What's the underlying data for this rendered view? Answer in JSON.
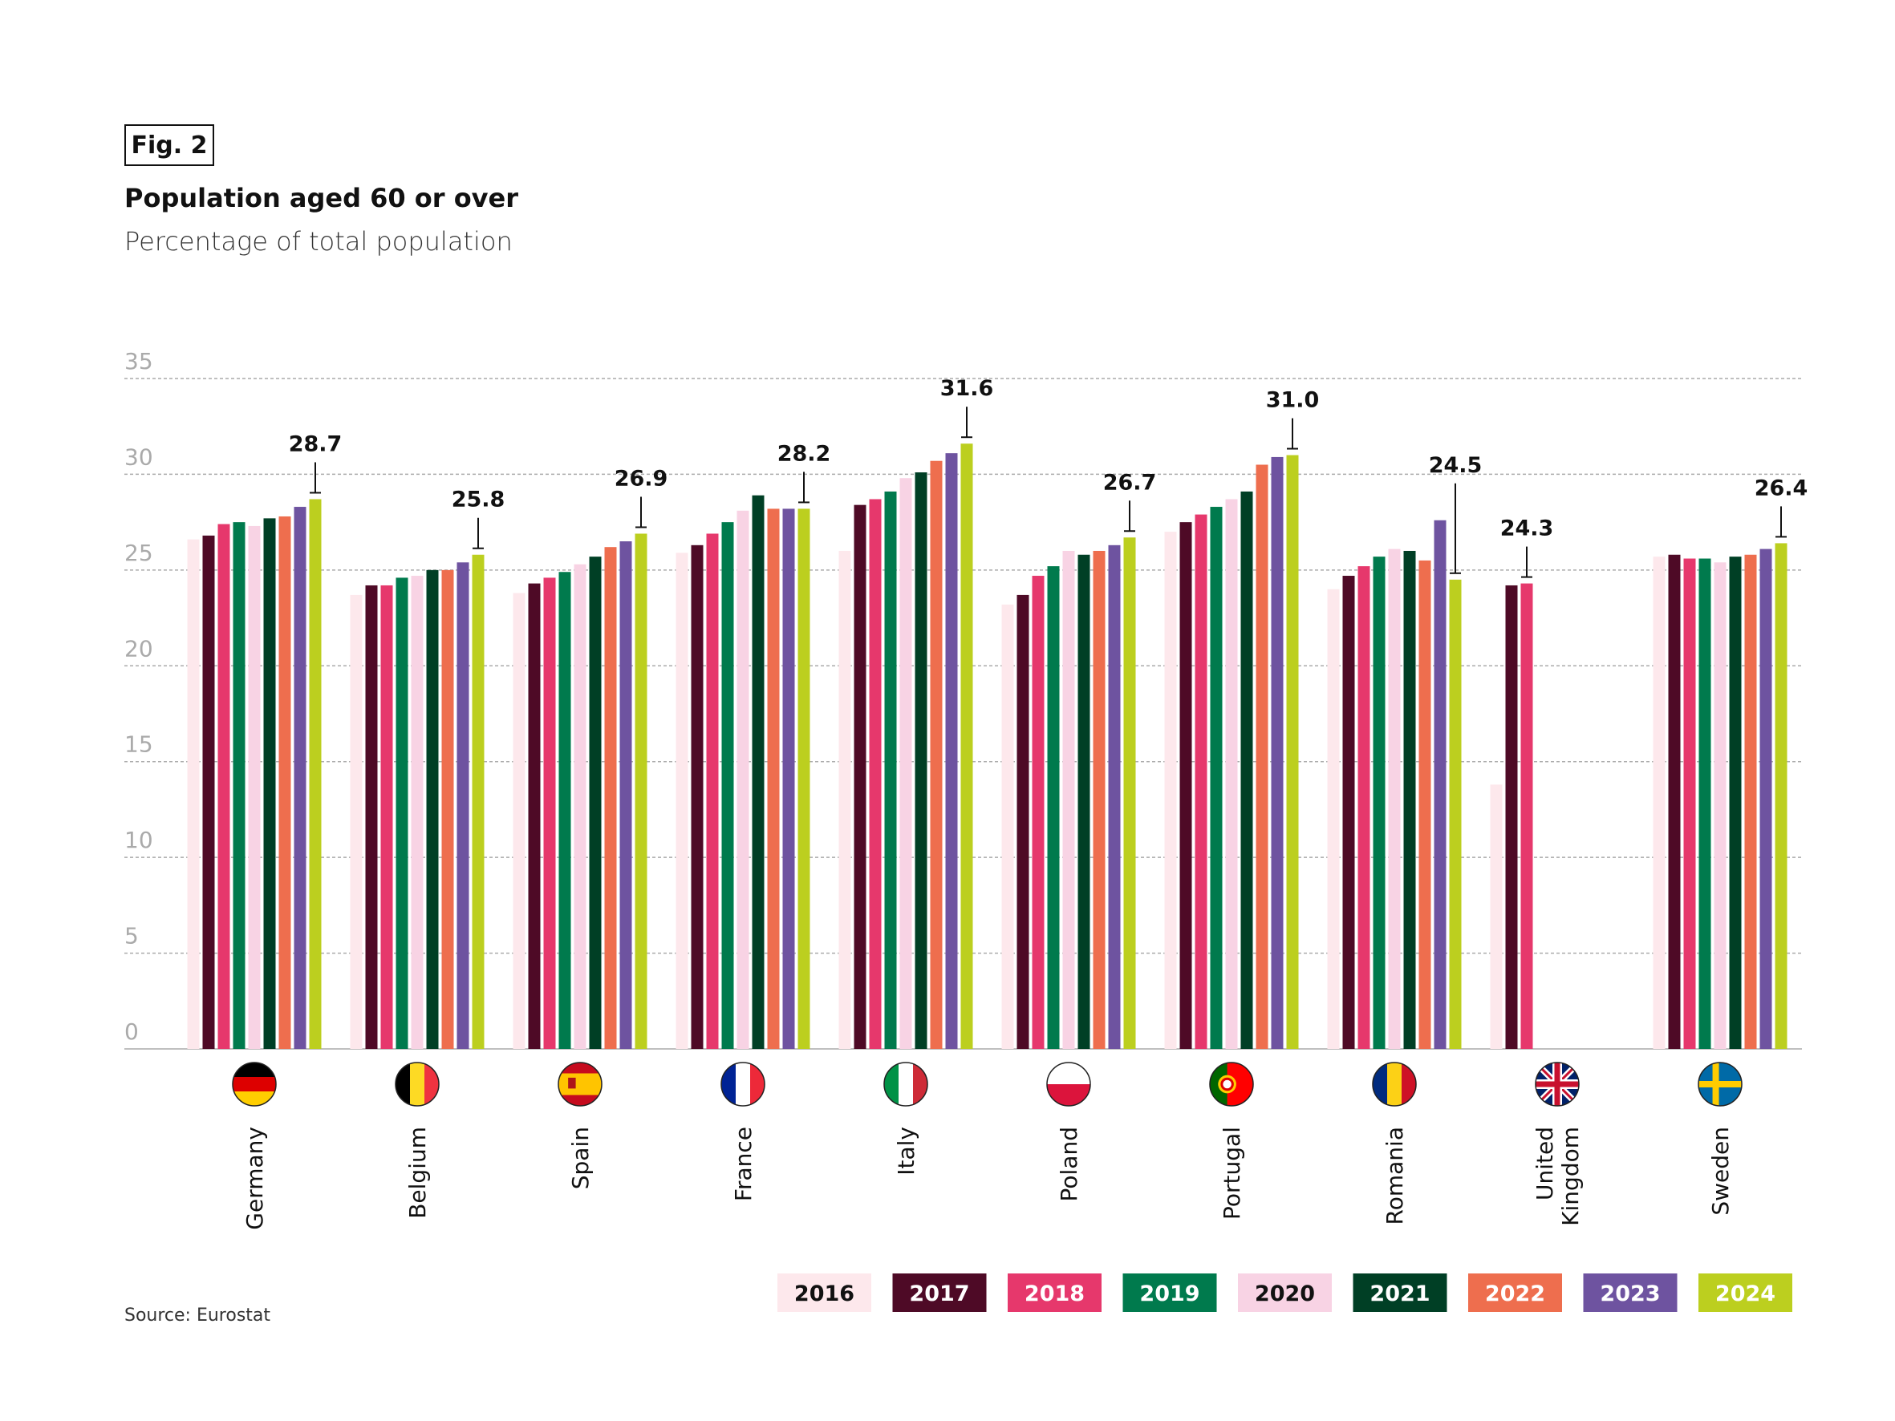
{
  "chart_data": {
    "type": "bar",
    "fig_label": "Fig. 2",
    "title": "Population aged 60 or over",
    "subtitle": "Percentage of total population",
    "source": "Source: Eurostat",
    "ylabel": "",
    "xlabel": "",
    "ylim": [
      0,
      35
    ],
    "yticks": [
      "0",
      "5",
      "10",
      "15",
      "20",
      "25",
      "30",
      "35"
    ],
    "grid": true,
    "legend_position": "bottom-right",
    "categories": [
      "Germany",
      "Belgium",
      "Spain",
      "France",
      "Italy",
      "Poland",
      "Portugal",
      "Romania",
      "United Kingdom",
      "Sweden"
    ],
    "flags": [
      "germany-flag",
      "belgium-flag",
      "spain-flag",
      "france-flag",
      "italy-flag",
      "poland-flag",
      "portugal-flag",
      "romania-flag",
      "uk-flag",
      "sweden-flag"
    ],
    "series": [
      {
        "name": "2016",
        "color": "#fde8ec",
        "text_color": "#111",
        "values": [
          26.6,
          23.7,
          23.8,
          25.9,
          26.0,
          23.2,
          27.0,
          24.0,
          13.8,
          25.7
        ]
      },
      {
        "name": "2017",
        "color": "#4e0a26",
        "text_color": "#fff",
        "values": [
          26.8,
          24.2,
          24.3,
          26.3,
          28.4,
          23.7,
          27.5,
          24.7,
          24.2,
          25.8
        ]
      },
      {
        "name": "2018",
        "color": "#e6386c",
        "text_color": "#fff",
        "values": [
          27.4,
          24.2,
          24.6,
          26.9,
          28.7,
          24.7,
          27.9,
          25.2,
          24.3,
          25.6
        ]
      },
      {
        "name": "2019",
        "color": "#007a4d",
        "text_color": "#fff",
        "values": [
          27.5,
          24.6,
          24.9,
          27.5,
          29.1,
          25.2,
          28.3,
          25.7,
          null,
          25.6
        ]
      },
      {
        "name": "2020",
        "color": "#f8d3e4",
        "text_color": "#111",
        "values": [
          27.3,
          24.7,
          25.3,
          28.1,
          29.8,
          26.0,
          28.7,
          26.1,
          null,
          25.4
        ]
      },
      {
        "name": "2021",
        "color": "#003f25",
        "text_color": "#fff",
        "values": [
          27.7,
          25.0,
          25.7,
          28.9,
          30.1,
          25.8,
          29.1,
          26.0,
          null,
          25.7
        ]
      },
      {
        "name": "2022",
        "color": "#ee6e4e",
        "text_color": "#fff",
        "values": [
          27.8,
          25.0,
          26.2,
          28.2,
          30.7,
          26.0,
          30.5,
          25.5,
          null,
          25.8
        ]
      },
      {
        "name": "2023",
        "color": "#6e53a0",
        "text_color": "#fff",
        "values": [
          28.3,
          25.4,
          26.5,
          28.2,
          31.1,
          26.3,
          30.9,
          27.6,
          null,
          26.1
        ]
      },
      {
        "name": "2024",
        "color": "#bccf1f",
        "text_color": "#fff",
        "values": [
          28.7,
          25.8,
          26.9,
          28.2,
          31.6,
          26.7,
          31.0,
          24.5,
          null,
          26.4
        ]
      }
    ],
    "data_labels": [
      "28.7",
      "25.8",
      "26.9",
      "28.2",
      "31.6",
      "26.7",
      "31.0",
      "24.5",
      "24.3",
      "26.4"
    ]
  }
}
